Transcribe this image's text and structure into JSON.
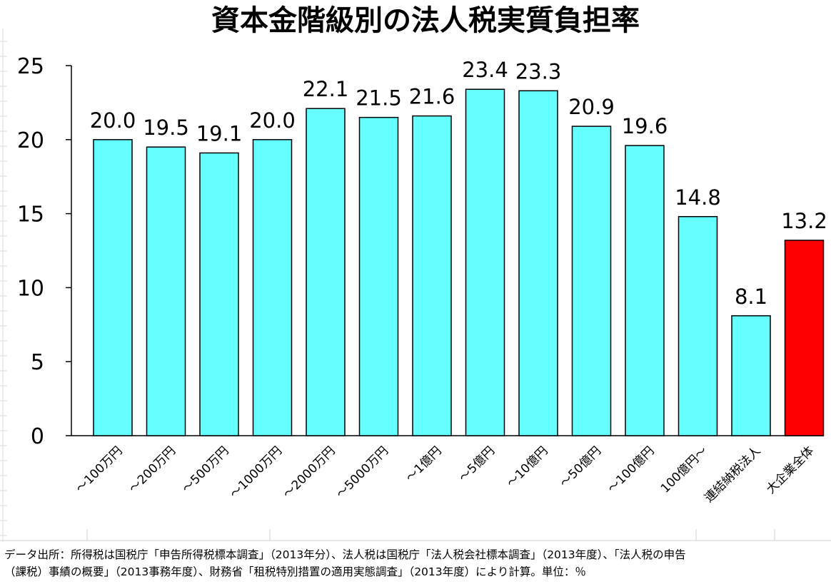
{
  "chart_data": {
    "type": "bar",
    "title": "資本金階級別の法人税実質負担率",
    "categories": [
      "～100万円",
      "～200万円",
      "～500万円",
      "～1000万円",
      "～2000万円",
      "～5000万円",
      "～1億円",
      "～5億円",
      "～10億円",
      "～50億円",
      "～100億円",
      "100億円～",
      "連結納税法人",
      "大企業全体"
    ],
    "values": [
      20.0,
      19.5,
      19.1,
      20.0,
      22.1,
      21.5,
      21.6,
      23.4,
      23.3,
      20.9,
      19.6,
      14.8,
      8.1,
      13.2
    ],
    "value_labels": [
      "20.0",
      "19.5",
      "19.1",
      "20.0",
      "22.1",
      "21.5",
      "21.6",
      "23.4",
      "23.3",
      "20.9",
      "19.6",
      "14.8",
      "8.1",
      "13.2"
    ],
    "y_ticks": [
      "0",
      "5",
      "10",
      "15",
      "20",
      "25"
    ],
    "ylim": [
      0,
      25
    ],
    "xlabel": "",
    "ylabel": "",
    "grid": false,
    "legend": "none",
    "colors": {
      "bar": "#66ffff",
      "highlight": "#ff0000",
      "highlight_index": 13,
      "edge": "#000000"
    }
  },
  "source_note": {
    "line1": "データ出所：所得税は国税庁「申告所得税標本調査」（2013年分）、法人税は国税庁「法人税会社標本調査」（2013年度）、「法人税の申告",
    "line2": "（課税）事績の概要」（2013事務年度）、財務省「租税特別措置の適用実態調査」（2013年度）により計算。単位：％"
  }
}
